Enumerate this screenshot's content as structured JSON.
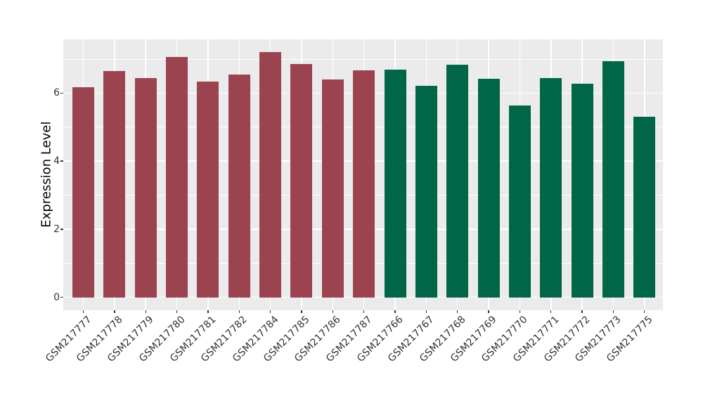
{
  "chart_data": {
    "type": "bar",
    "title": "",
    "xlabel": "",
    "ylabel": "Expression Level",
    "categories": [
      "GSM217777",
      "GSM217778",
      "GSM217779",
      "GSM217780",
      "GSM217781",
      "GSM217782",
      "GSM217784",
      "GSM217785",
      "GSM217786",
      "GSM217787",
      "GSM217766",
      "GSM217767",
      "GSM217768",
      "GSM217769",
      "GSM217770",
      "GSM217771",
      "GSM217772",
      "GSM217773",
      "GSM217775"
    ],
    "values": [
      6.17,
      6.65,
      6.45,
      7.06,
      6.34,
      6.54,
      7.21,
      6.85,
      6.39,
      6.67,
      6.68,
      6.22,
      6.83,
      6.42,
      5.63,
      6.43,
      6.27,
      6.94,
      5.3
    ],
    "bar_colors": [
      "#9B4450",
      "#9B4450",
      "#9B4450",
      "#9B4450",
      "#9B4450",
      "#9B4450",
      "#9B4450",
      "#9B4450",
      "#9B4450",
      "#9B4450",
      "#006647",
      "#006647",
      "#006647",
      "#006647",
      "#006647",
      "#006647",
      "#006647",
      "#006647",
      "#006647"
    ],
    "group_colors": {
      "maroon_group": "#9B4450",
      "green_group": "#006647"
    },
    "y_ticks": [
      0,
      2,
      4,
      6
    ],
    "y_tick_labels": [
      "0",
      "2",
      "4",
      "6"
    ],
    "y_minor_ticks": [
      1,
      3,
      5,
      7
    ],
    "ylim": [
      0,
      7.58
    ],
    "grid": true,
    "legend_position": "none",
    "panel_bg": "#EBEBEB",
    "grid_color": "#FFFFFF",
    "tick_label_color": "#333333",
    "axis_title_color": "#000000"
  }
}
